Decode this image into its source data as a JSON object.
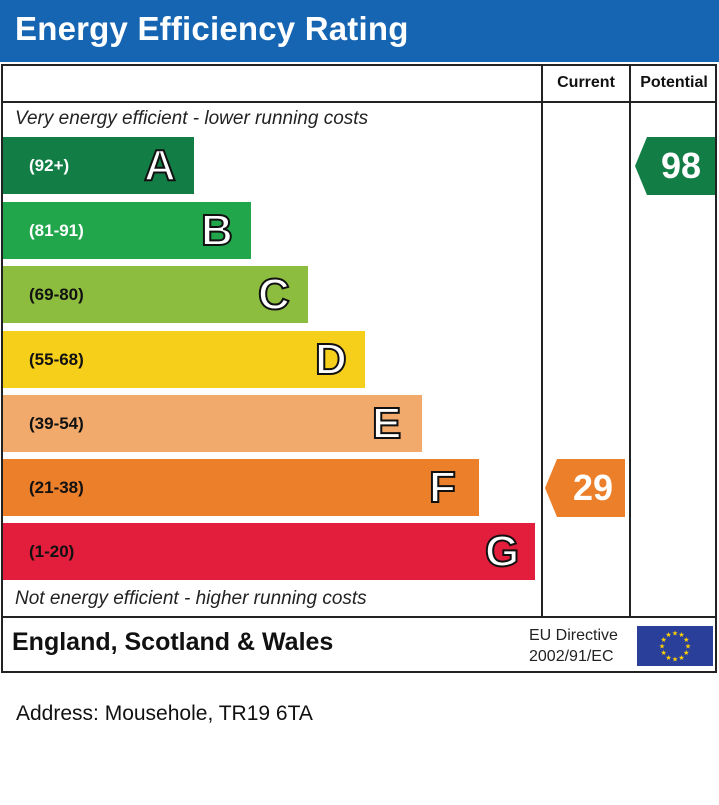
{
  "header": {
    "title": "Energy Efficiency Rating"
  },
  "columns": {
    "current": "Current",
    "potential": "Potential"
  },
  "notes": {
    "top": "Very energy efficient - lower running costs",
    "bottom": "Not energy efficient - higher running costs"
  },
  "chart_data": {
    "type": "bar",
    "title": "Energy Efficiency Rating",
    "categories": [
      "A",
      "B",
      "C",
      "D",
      "E",
      "F",
      "G"
    ],
    "bands": [
      {
        "letter": "A",
        "range": "(92+)",
        "color": "#127e46",
        "range_color": "#ffffff"
      },
      {
        "letter": "B",
        "range": "(81-91)",
        "color": "#21a64b",
        "range_color": "#ffffff"
      },
      {
        "letter": "C",
        "range": "(69-80)",
        "color": "#8dbd3f",
        "range_color": "#111111"
      },
      {
        "letter": "D",
        "range": "(55-68)",
        "color": "#f6cf1b",
        "range_color": "#111111"
      },
      {
        "letter": "E",
        "range": "(39-54)",
        "color": "#f1aa6b",
        "range_color": "#111111"
      },
      {
        "letter": "F",
        "range": "(21-38)",
        "color": "#ec7f2a",
        "range_color": "#111111"
      },
      {
        "letter": "G",
        "range": "(1-20)",
        "color": "#e31e3c",
        "range_color": "#111111"
      }
    ],
    "current": {
      "value": 29,
      "band": "F",
      "color": "#ec7f2a"
    },
    "potential": {
      "value": 98,
      "band": "A",
      "color": "#127e46"
    }
  },
  "footer": {
    "region": "England, Scotland & Wales",
    "directive_line1": "EU Directive",
    "directive_line2": "2002/91/EC",
    "flag_color": "#2a3f9a",
    "star_color": "#ffd200"
  },
  "address": "Address: Mousehole, TR19 6TA"
}
